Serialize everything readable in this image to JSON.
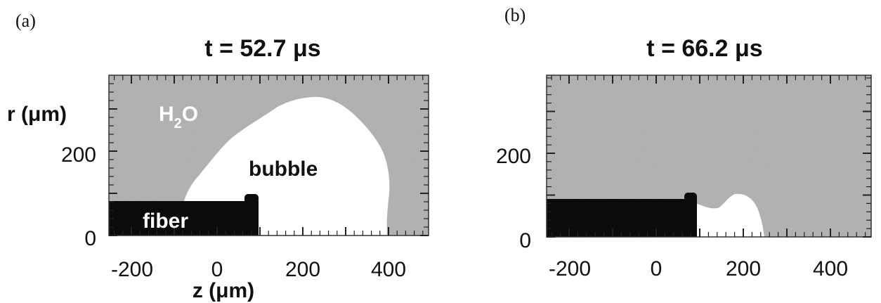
{
  "panels": [
    {
      "letter": "(a)",
      "title": "t = 52.7 μs",
      "x_ticks": [
        "-200",
        "0",
        "200",
        "400"
      ],
      "y_ticks": [
        "0",
        "200"
      ],
      "y_label": "r (μm)",
      "x_label": "z (μm)",
      "labels": {
        "water": "H",
        "water_sub": "2",
        "water_tail": "O",
        "bubble": "bubble",
        "fiber": "fiber"
      }
    },
    {
      "letter": "(b)",
      "title": "t = 66.2 μs",
      "x_ticks": [
        "-200",
        "0",
        "200",
        "400"
      ],
      "y_ticks": [
        "0",
        "200"
      ]
    }
  ],
  "colors": {
    "water": "#a8a8a8",
    "bubble": "#ffffff",
    "fiber": "#0b0b0b"
  }
}
